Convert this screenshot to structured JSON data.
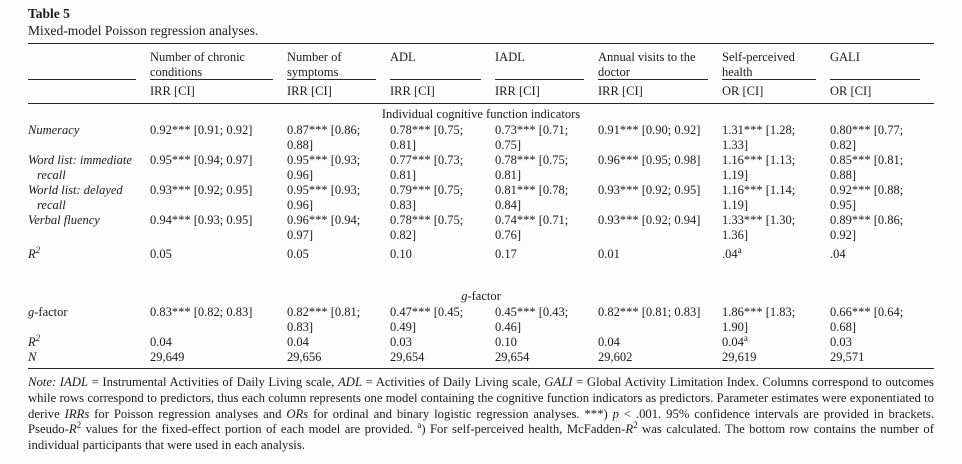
{
  "title": "Table 5",
  "caption": "Mixed-model Poisson regression analyses.",
  "columns": {
    "groups": [
      "Number of chronic\nconditions",
      "Number of\nsymptoms",
      "ADL",
      "IADL",
      "Annual visits to the\ndoctor",
      "Self-perceived\nhealth",
      "GALI"
    ],
    "measures": [
      "IRR [CI]",
      "IRR [CI]",
      "IRR [CI]",
      "IRR [CI]",
      "IRR [CI]",
      "OR [CI]",
      "OR [CI]"
    ]
  },
  "s1": {
    "label": "Individual cognitive function indicators",
    "rows": [
      {
        "label": "Numeracy",
        "cells": [
          "0.92*** [0.91; 0.92]",
          "0.87*** [0.86;\n0.88]",
          "0.78*** [0.75;\n0.81]",
          "0.73*** [0.71;\n0.75]",
          "0.91*** [0.90; 0.92]",
          "1.31*** [1.28;\n1.33]",
          "0.80*** [0.77;\n0.82]"
        ]
      },
      {
        "label": "Word list: immediate\nrecall",
        "cells": [
          "0.95*** [0.94; 0.97]",
          "0.95*** [0.93;\n0.96]",
          "0.77*** [0.73;\n0.81]",
          "0.78*** [0.75;\n0.81]",
          "0.96*** [0.95; 0.98]",
          "1.16*** [1.13;\n1.19]",
          "0.85*** [0.81;\n0.88]"
        ]
      },
      {
        "label": "World list: delayed\nrecall",
        "cells": [
          "0.93*** [0.92; 0.95]",
          "0.95*** [0.93;\n0.96]",
          "0.79*** [0.75;\n0.83]",
          "0.81*** [0.78;\n0.84]",
          "0.93*** [0.92; 0.95]",
          "1.16*** [1.14;\n1.19]",
          "0.92*** [0.88;\n0.95]"
        ]
      },
      {
        "label": "Verbal fluency",
        "cells": [
          "0.94*** [0.93; 0.95]",
          "0.96*** [0.94;\n0.97]",
          "0.78*** [0.75;\n0.82]",
          "0.74*** [0.71;\n0.76]",
          "0.93*** [0.92; 0.94]",
          "1.33*** [1.30;\n1.36]",
          "0.89*** [0.86;\n0.92]"
        ]
      }
    ],
    "r2": {
      "base": "R",
      "sup": "2",
      "cells": [
        "0.05",
        "0.05",
        "0.10",
        "0.17",
        "0.01",
        ".04",
        ".04"
      ],
      "sups": [
        "",
        "",
        "",
        "",
        "",
        "a",
        ""
      ]
    }
  },
  "s2": {
    "g": "g",
    "rest": "-factor",
    "grow": {
      "g": "g",
      "rest": "-factor",
      "cells": [
        "0.83*** [0.82; 0.83]",
        "0.82*** [0.81;\n0.83]",
        "0.47*** [0.45;\n0.49]",
        "0.45*** [0.43;\n0.46]",
        "0.82*** [0.81; 0.83]",
        "1.86*** [1.83;\n1.90]",
        "0.66*** [0.64;\n0.68]"
      ]
    },
    "r2": {
      "base": "R",
      "sup": "2",
      "cells": [
        "0.04",
        "0.04",
        "0.03",
        "0.10",
        "0.04",
        "0.04",
        "0.03"
      ],
      "sups": [
        "",
        "",
        "",
        "",
        "",
        "a",
        ""
      ]
    },
    "n": {
      "label": "N",
      "cells": [
        "29,649",
        "29,656",
        "29,654",
        "29,654",
        "29,602",
        "29,619",
        "29,571"
      ]
    }
  },
  "note": {
    "segs": [
      "Note: IADL",
      " = Instrumental Activities of Daily Living scale, ",
      "ADL",
      " = Activities of Daily Living scale, ",
      "GALI",
      " = Global Activity Limitation Index. Columns correspond to outcomes while rows correspond to predictors, thus each column represents one model containing the cognitive function indicators as predictors. Parameter estimates were exponentiated to derive ",
      "IRRs",
      " for Poisson regression analyses and ",
      "ORs",
      " for ordinal and binary logistic regression analyses. ***) ",
      "p",
      " < .001. 95% confidence intervals are provided in brackets. Pseudo-",
      "R",
      "2",
      " values for the fixed-effect portion of each model are provided. ",
      "a",
      ") For self-perceived health, McFadden-",
      "R",
      "2",
      " was calculated. The bottom row contains the number of individual participants that were used in each analysis."
    ]
  }
}
